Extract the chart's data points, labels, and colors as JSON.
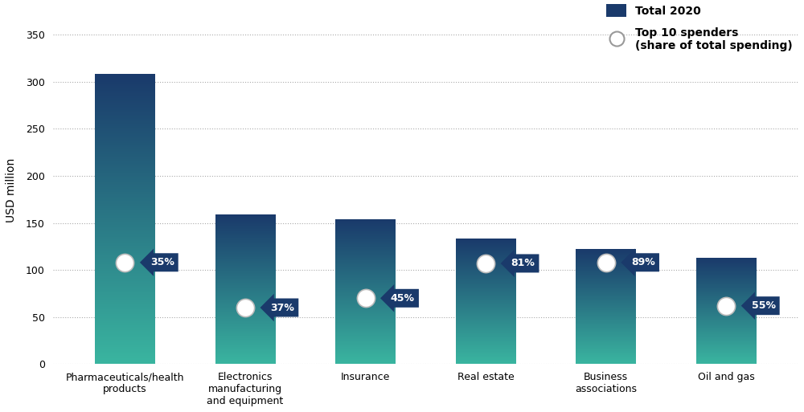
{
  "categories": [
    "Pharmaceuticals/health\nproducts",
    "Electronics\nmanufacturing\nand equipment",
    "Insurance",
    "Real estate",
    "Business\nassociations",
    "Oil and gas"
  ],
  "bar_values": [
    308,
    158,
    153,
    133,
    122,
    112
  ],
  "dot_values": [
    108,
    60,
    70,
    107,
    108,
    62
  ],
  "percentages": [
    "35%",
    "37%",
    "45%",
    "81%",
    "89%",
    "55%"
  ],
  "bar_color_top": "#1a3a6b",
  "bar_color_bottom": "#3ab5a0",
  "dot_color": "white",
  "dot_edgecolor": "#cccccc",
  "label_box_color": "#1a3a6b",
  "label_text_color": "white",
  "ylabel": "USD million",
  "ylim": [
    0,
    370
  ],
  "yticks": [
    0,
    50,
    100,
    150,
    200,
    250,
    300,
    350
  ],
  "legend_bar_label": "Total 2020",
  "legend_dot_label": "Top 10 spenders\n(share of total spending)",
  "background_color": "#ffffff",
  "grid_color": "#aaaaaa",
  "figsize": [
    10,
    5.13
  ],
  "dpi": 100,
  "bar_width": 0.5
}
